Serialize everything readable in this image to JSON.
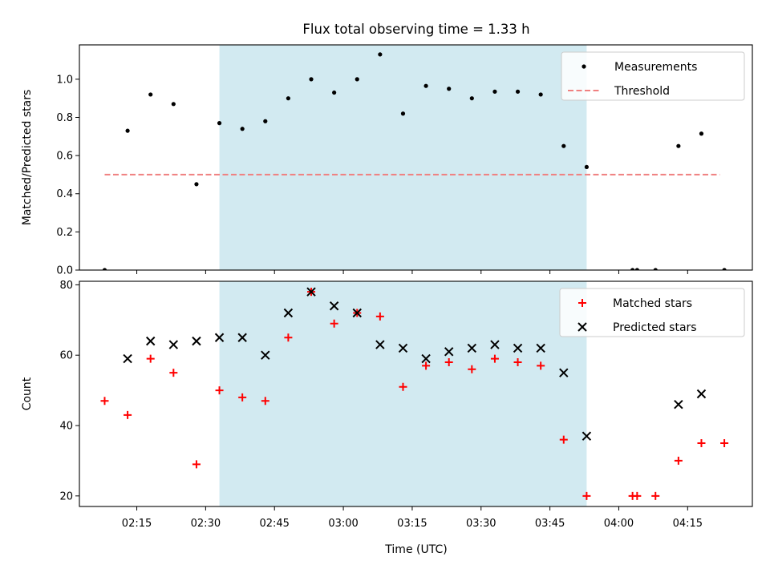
{
  "chart_data": {
    "title": "Flux total observing time = 1.33 h",
    "xlabel": "Time (UTC)",
    "x_ticks": [
      "02:15",
      "02:30",
      "02:45",
      "03:00",
      "03:15",
      "03:30",
      "03:45",
      "04:00",
      "04:15"
    ],
    "shaded_span": {
      "start": "02:33",
      "end": "03:53",
      "color": "#add8e6"
    },
    "panels": [
      {
        "type": "scatter",
        "ylabel": "Matched/Predicted stars",
        "ylim": [
          0,
          1.18
        ],
        "y_ticks": [
          "0.0",
          "0.2",
          "0.4",
          "0.6",
          "0.8",
          "1.0"
        ],
        "legend_position": "top-right",
        "series": [
          {
            "name": "Measurements",
            "marker": "dot",
            "color": "#000000",
            "points": [
              [
                "02:08",
                0.0
              ],
              [
                "02:13",
                0.73
              ],
              [
                "02:18",
                0.92
              ],
              [
                "02:23",
                0.87
              ],
              [
                "02:28",
                0.45
              ],
              [
                "02:33",
                0.77
              ],
              [
                "02:38",
                0.74
              ],
              [
                "02:43",
                0.78
              ],
              [
                "02:48",
                0.9
              ],
              [
                "02:53",
                1.0
              ],
              [
                "02:58",
                0.93
              ],
              [
                "03:03",
                1.0
              ],
              [
                "03:08",
                1.13
              ],
              [
                "03:13",
                0.82
              ],
              [
                "03:18",
                0.965
              ],
              [
                "03:23",
                0.95
              ],
              [
                "03:28",
                0.9
              ],
              [
                "03:33",
                0.935
              ],
              [
                "03:38",
                0.935
              ],
              [
                "03:43",
                0.92
              ],
              [
                "03:48",
                0.65
              ],
              [
                "03:53",
                0.54
              ],
              [
                "04:03",
                0.0
              ],
              [
                "04:04",
                0.0
              ],
              [
                "04:08",
                0.0
              ],
              [
                "04:13",
                0.65
              ],
              [
                "04:18",
                0.715
              ],
              [
                "04:23",
                0.0
              ]
            ]
          },
          {
            "name": "Threshold",
            "marker": "dashed-line",
            "color": "#f08080",
            "points": [
              [
                "02:08",
                0.5
              ],
              [
                "04:22",
                0.5
              ]
            ]
          }
        ]
      },
      {
        "type": "scatter",
        "ylabel": "Count",
        "ylim": [
          17,
          81
        ],
        "y_ticks": [
          "20",
          "40",
          "60",
          "80"
        ],
        "legend_position": "top-right",
        "series": [
          {
            "name": "Matched stars",
            "marker": "plus",
            "color": "#ff0000",
            "points": [
              [
                "02:08",
                47
              ],
              [
                "02:13",
                43
              ],
              [
                "02:18",
                59
              ],
              [
                "02:23",
                55
              ],
              [
                "02:28",
                29
              ],
              [
                "02:33",
                50
              ],
              [
                "02:38",
                48
              ],
              [
                "02:43",
                47
              ],
              [
                "02:48",
                65
              ],
              [
                "02:53",
                78
              ],
              [
                "02:58",
                69
              ],
              [
                "03:03",
                72
              ],
              [
                "03:08",
                71
              ],
              [
                "03:13",
                51
              ],
              [
                "03:18",
                57
              ],
              [
                "03:23",
                58
              ],
              [
                "03:28",
                56
              ],
              [
                "03:33",
                59
              ],
              [
                "03:38",
                58
              ],
              [
                "03:43",
                57
              ],
              [
                "03:48",
                36
              ],
              [
                "03:53",
                20
              ],
              [
                "04:03",
                20
              ],
              [
                "04:04",
                20
              ],
              [
                "04:08",
                20
              ],
              [
                "04:13",
                30
              ],
              [
                "04:18",
                35
              ],
              [
                "04:23",
                35
              ]
            ]
          },
          {
            "name": "Predicted stars",
            "marker": "x",
            "color": "#000000",
            "points": [
              [
                "02:13",
                59
              ],
              [
                "02:18",
                64
              ],
              [
                "02:23",
                63
              ],
              [
                "02:28",
                64
              ],
              [
                "02:33",
                65
              ],
              [
                "02:38",
                65
              ],
              [
                "02:43",
                60
              ],
              [
                "02:48",
                72
              ],
              [
                "02:53",
                78
              ],
              [
                "02:58",
                74
              ],
              [
                "03:03",
                72
              ],
              [
                "03:08",
                63
              ],
              [
                "03:13",
                62
              ],
              [
                "03:18",
                59
              ],
              [
                "03:23",
                61
              ],
              [
                "03:28",
                62
              ],
              [
                "03:33",
                63
              ],
              [
                "03:38",
                62
              ],
              [
                "03:43",
                62
              ],
              [
                "03:48",
                55
              ],
              [
                "03:53",
                37
              ],
              [
                "04:13",
                46
              ],
              [
                "04:18",
                49
              ]
            ]
          }
        ]
      }
    ]
  }
}
